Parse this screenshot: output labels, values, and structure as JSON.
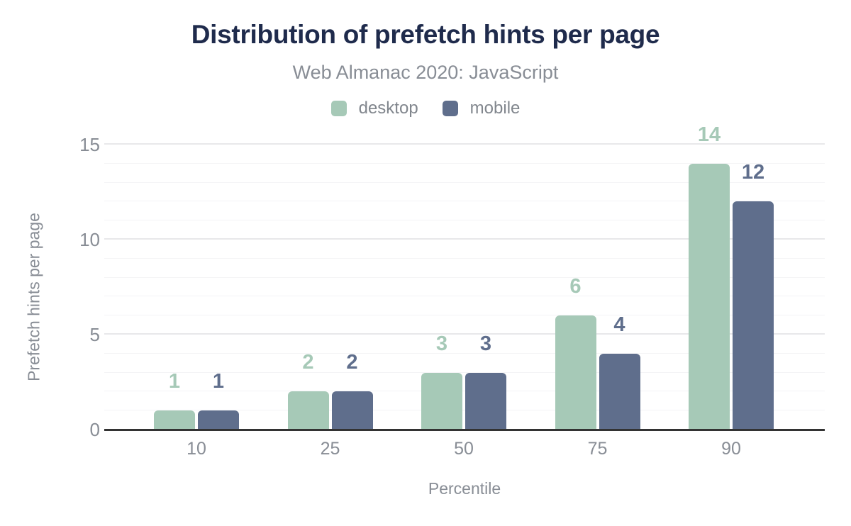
{
  "chart_data": {
    "type": "bar",
    "title": "Distribution of prefetch hints per page",
    "subtitle": "Web Almanac 2020: JavaScript",
    "xlabel": "Percentile",
    "ylabel": "Prefetch hints per page",
    "categories": [
      "10",
      "25",
      "50",
      "75",
      "90"
    ],
    "series": [
      {
        "name": "desktop",
        "color": "#a6c9b7",
        "values": [
          1,
          2,
          3,
          6,
          14
        ]
      },
      {
        "name": "mobile",
        "color": "#5f6e8c",
        "values": [
          1,
          2,
          3,
          4,
          12
        ]
      }
    ],
    "ylim": [
      0,
      15
    ],
    "y_ticks": [
      0,
      5,
      10,
      15
    ],
    "grid": {
      "orientation": "horizontal",
      "minor_every": 1,
      "major_every": 5
    },
    "legend_position": "top",
    "value_labels": true
  },
  "colors": {
    "title": "#1f2b4c",
    "muted_text": "#888d95",
    "axis_line": "#333333",
    "grid_major": "#e8e8ea",
    "grid_minor": "#f4f4f6",
    "background": "#ffffff"
  }
}
